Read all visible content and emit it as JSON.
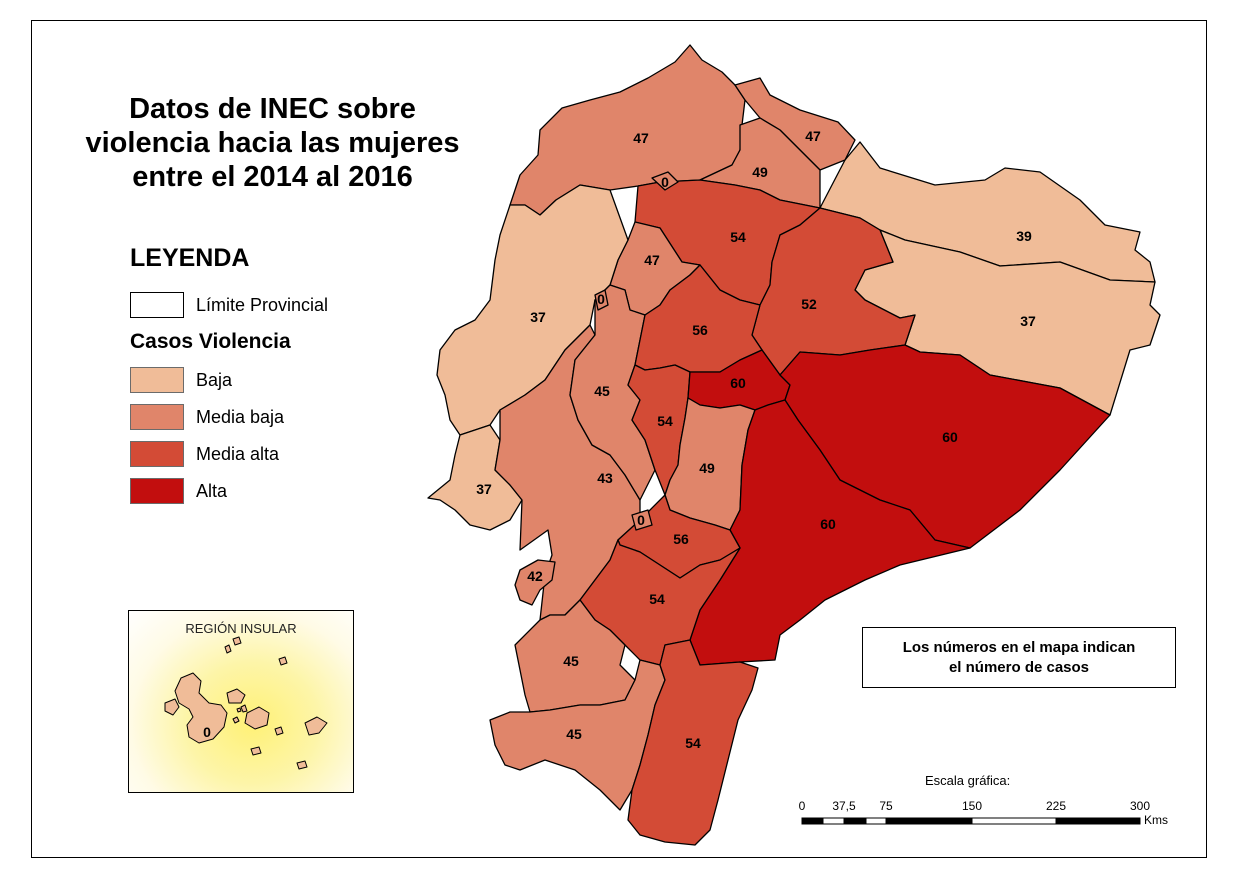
{
  "title": {
    "line1": "Datos de INEC sobre",
    "line2": "violencia hacia las mujeres",
    "line3": "entre el 2014 al 2016"
  },
  "legend": {
    "heading": "LEYENDA",
    "boundary_label": "Límite Provincial",
    "category_heading": "Casos Violencia",
    "classes": [
      {
        "label": "Baja",
        "color": "#f0bc98"
      },
      {
        "label": "Media baja",
        "color": "#e0856a"
      },
      {
        "label": "Media alta",
        "color": "#d34b36"
      },
      {
        "label": "Alta",
        "color": "#c20e0e"
      }
    ]
  },
  "inset": {
    "title": "REGIÓN INSULAR",
    "value": "0",
    "class": "Baja"
  },
  "note": {
    "line1": "Los números en el mapa indican",
    "line2": "el número de casos"
  },
  "scale": {
    "title": "Escala gráfica:",
    "ticks": [
      "0",
      "37,5",
      "75",
      "150",
      "225",
      "300"
    ],
    "unit": "Kms"
  },
  "regions": [
    {
      "id": "esmeraldas",
      "value": "47",
      "class": "Media baja"
    },
    {
      "id": "carchi",
      "value": "47",
      "class": "Media baja"
    },
    {
      "id": "imbabura",
      "value": "49",
      "class": "Media baja"
    },
    {
      "id": "sucumbios",
      "value": "39",
      "class": "Baja"
    },
    {
      "id": "pichincha",
      "value": "54",
      "class": "Media alta"
    },
    {
      "id": "santo-domingo",
      "value": "47",
      "class": "Media baja"
    },
    {
      "id": "napo",
      "value": "52",
      "class": "Media alta"
    },
    {
      "id": "orellana",
      "value": "37",
      "class": "Baja"
    },
    {
      "id": "manabi",
      "value": "37",
      "class": "Baja"
    },
    {
      "id": "cotopaxi",
      "value": "56",
      "class": "Media alta"
    },
    {
      "id": "los-rios",
      "value": "45",
      "class": "Media baja"
    },
    {
      "id": "tungurahua",
      "value": "60",
      "class": "Alta"
    },
    {
      "id": "pastaza",
      "value": "60",
      "class": "Alta"
    },
    {
      "id": "bolivar",
      "value": "54",
      "class": "Media alta"
    },
    {
      "id": "chimborazo",
      "value": "49",
      "class": "Media baja"
    },
    {
      "id": "santa-elena",
      "value": "37",
      "class": "Baja"
    },
    {
      "id": "guayas",
      "value": "43",
      "class": "Media baja"
    },
    {
      "id": "morona-santiago",
      "value": "60",
      "class": "Alta"
    },
    {
      "id": "canar",
      "value": "56",
      "class": "Media alta"
    },
    {
      "id": "azuay",
      "value": "54",
      "class": "Media alta"
    },
    {
      "id": "el-oro",
      "value": "45",
      "class": "Media baja"
    },
    {
      "id": "loja",
      "value": "45",
      "class": "Media baja"
    },
    {
      "id": "zamora-chinchipe",
      "value": "54",
      "class": "Media alta"
    },
    {
      "id": "puna",
      "value": "42",
      "class": "Media baja"
    },
    {
      "id": "zona-no-delimitada-1",
      "value": "0",
      "class": "Media baja"
    },
    {
      "id": "zona-no-delimitada-2",
      "value": "0",
      "class": "Media baja"
    },
    {
      "id": "zona-no-delimitada-3",
      "value": "0",
      "class": "Media baja"
    }
  ]
}
